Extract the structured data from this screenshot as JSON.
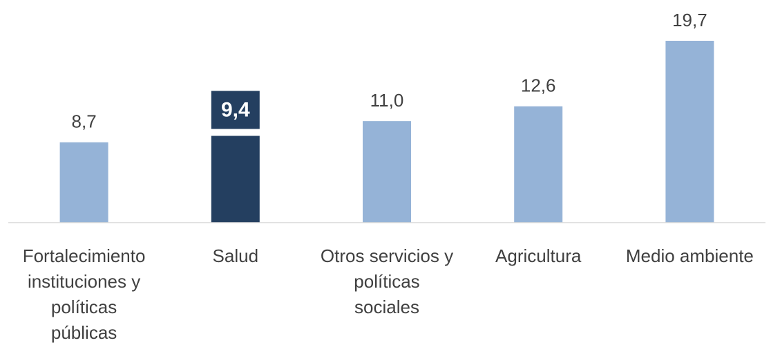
{
  "chart_data": {
    "type": "bar",
    "categories": [
      "Fortalecimiento instituciones y políticas públicas",
      "Salud",
      "Otros servicios y políticas sociales",
      "Agricultura",
      "Medio ambiente"
    ],
    "values": [
      8.7,
      9.4,
      11.0,
      12.6,
      19.7
    ],
    "value_labels": [
      "8,7",
      "9,4",
      "11,0",
      "12,6",
      "19,7"
    ],
    "colors": [
      "#95b3d7",
      "#243f60",
      "#95b3d7",
      "#95b3d7",
      "#95b3d7"
    ]
  }
}
